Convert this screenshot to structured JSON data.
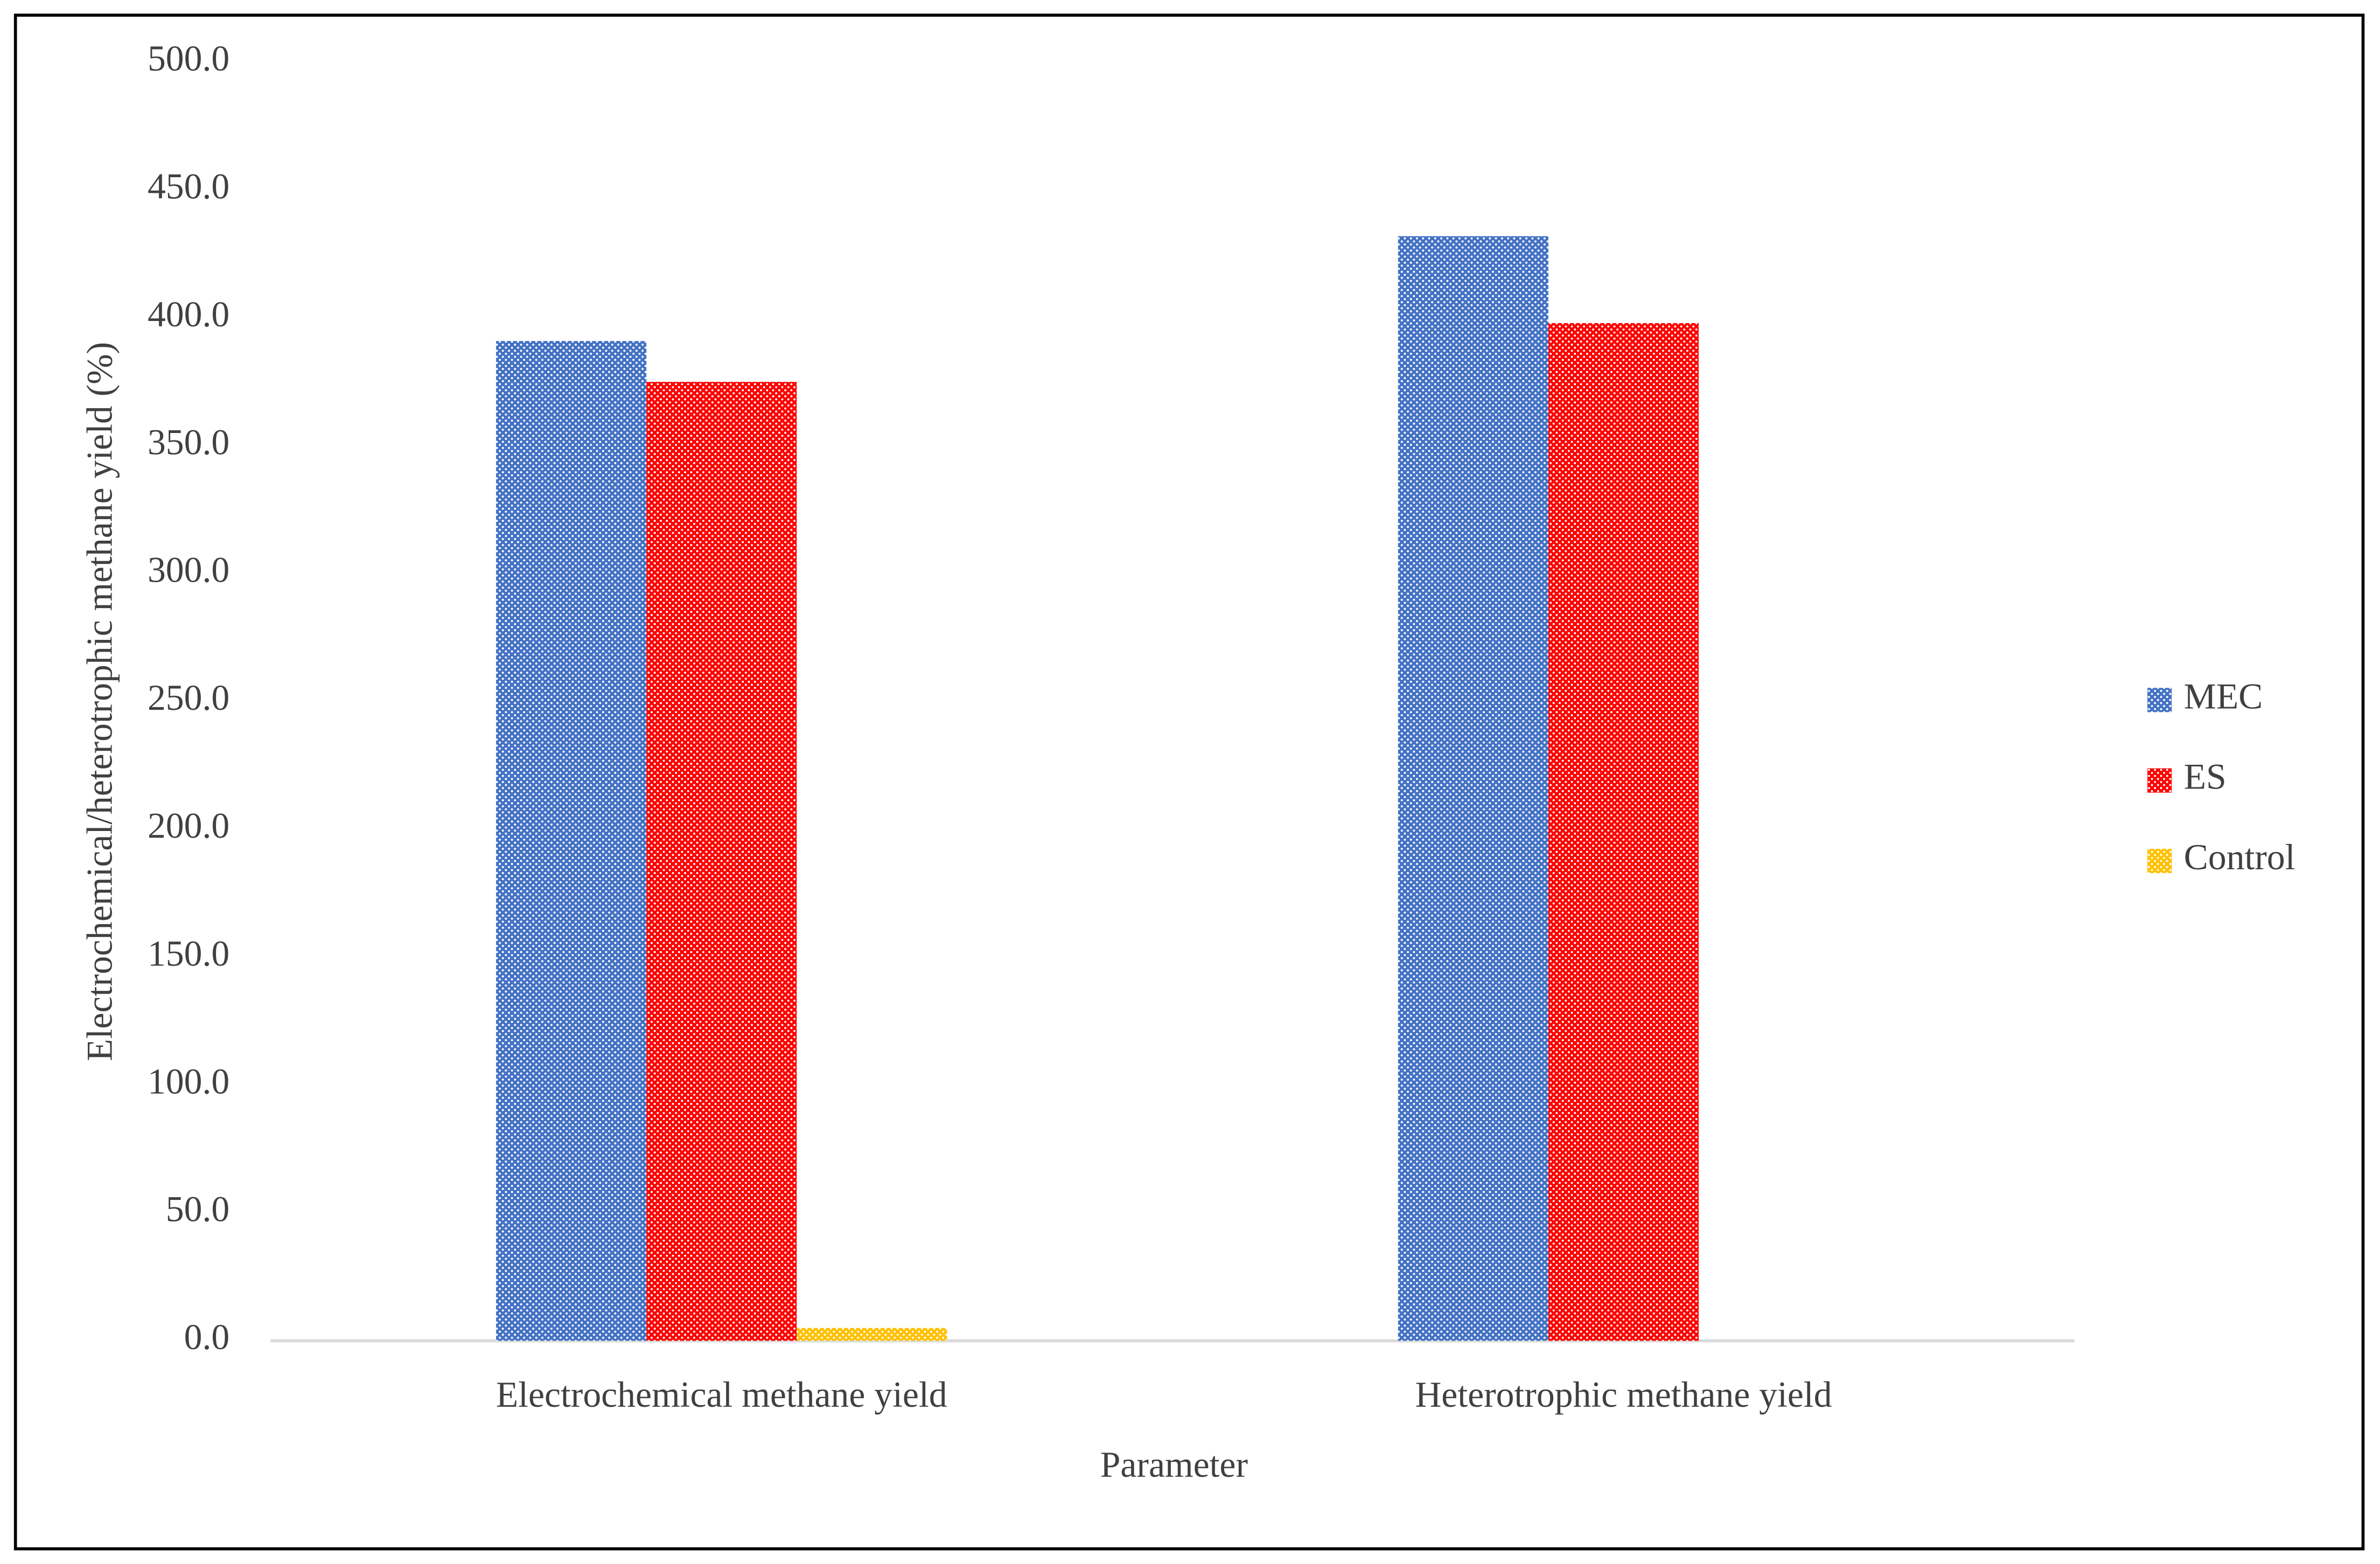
{
  "chart_data": {
    "type": "bar",
    "x_label": "Parameter",
    "y_label": "Electrochemical/heterotrophic methane yield (%)",
    "categories": [
      "Electrochemical methane yield",
      "Heterotrophic methane yield"
    ],
    "series": [
      {
        "name": "MEC",
        "color": "#4472c4",
        "values": [
          391,
          432
        ]
      },
      {
        "name": "ES",
        "color": "#ff0000",
        "values": [
          375,
          398
        ]
      },
      {
        "name": "Control",
        "color": "#ffc000",
        "values": [
          5,
          0
        ]
      }
    ],
    "ylim": [
      0,
      500
    ],
    "yticks": [
      {
        "value": 0,
        "label": "0.0"
      },
      {
        "value": 50,
        "label": "50.0"
      },
      {
        "value": 100,
        "label": "100.0"
      },
      {
        "value": 150,
        "label": "150.0"
      },
      {
        "value": 200,
        "label": "200.0"
      },
      {
        "value": 250,
        "label": "250.0"
      },
      {
        "value": 300,
        "label": "300.0"
      },
      {
        "value": 350,
        "label": "350.0"
      },
      {
        "value": 400,
        "label": "400.0"
      },
      {
        "value": 450,
        "label": "450.0"
      },
      {
        "value": 500,
        "label": "500.0"
      }
    ],
    "grid": false,
    "legend": "right"
  }
}
